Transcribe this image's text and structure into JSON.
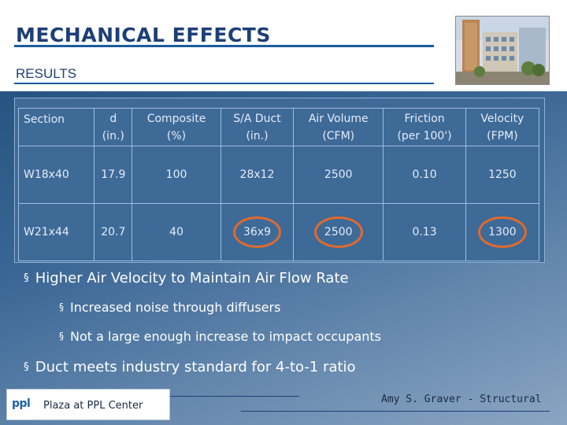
{
  "slide": {
    "title": "MECHANICAL EFFECTS",
    "subtitle": "RESULTS"
  },
  "table": {
    "headers": [
      {
        "line1": "Section",
        "line2": ""
      },
      {
        "line1": "d",
        "line2": "(in.)"
      },
      {
        "line1": "Composite",
        "line2": "(%)"
      },
      {
        "line1": "S/A Duct",
        "line2": "(in.)"
      },
      {
        "line1": "Air Volume",
        "line2": "(CFM)"
      },
      {
        "line1": "Friction",
        "line2": "(per 100')"
      },
      {
        "line1": "Velocity",
        "line2": "(FPM)"
      }
    ],
    "rows": [
      [
        "W18x40",
        "17.9",
        "100",
        "28x12",
        "2500",
        "0.10",
        "1250"
      ],
      [
        "W21x44",
        "20.7",
        "40",
        "36x9",
        "2500",
        "0.13",
        "1300"
      ]
    ],
    "highlight_color": "#e06a2c"
  },
  "bullets": {
    "b1": "Higher Air Velocity to Maintain Air Flow Rate",
    "b2": "Increased noise through diffusers",
    "b3": "Not a large enough increase to impact occupants",
    "b4": "Duct meets industry standard for 4-to-1 ratio",
    "marker": "§"
  },
  "footer": {
    "logo": "ppl",
    "project": "Plaza at PPL Center",
    "author": "Amy S. Graver - Structural"
  },
  "colors": {
    "title": "#1d3f77",
    "accent_rule": "#1d5b9d",
    "table_bg": "#3e6a98"
  }
}
